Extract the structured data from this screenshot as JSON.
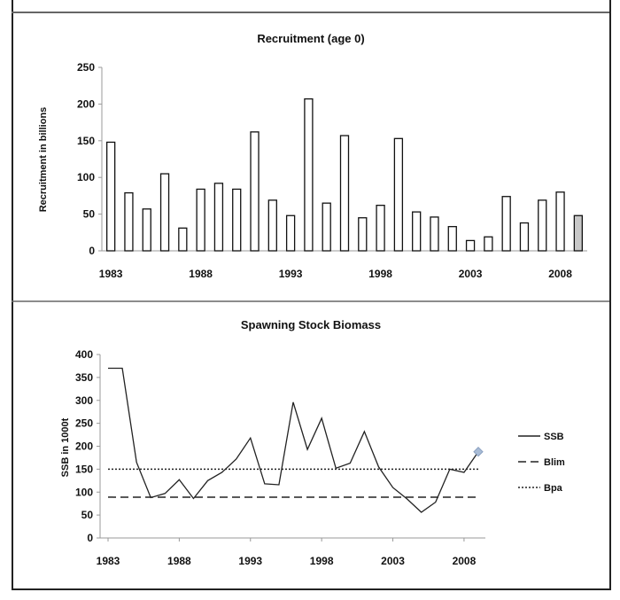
{
  "chart_data": [
    {
      "type": "bar",
      "title": "Recruitment (age 0)",
      "xlabel": "",
      "ylabel": "Recruitment in billions",
      "ylim": [
        0,
        250
      ],
      "yticks": [
        0,
        50,
        100,
        150,
        200,
        250
      ],
      "xtick_labels": [
        "1983",
        "1988",
        "1993",
        "1998",
        "2003",
        "2008"
      ],
      "categories": [
        1983,
        1984,
        1985,
        1986,
        1987,
        1988,
        1989,
        1990,
        1991,
        1992,
        1993,
        1994,
        1995,
        1996,
        1997,
        1998,
        1999,
        2000,
        2001,
        2002,
        2003,
        2004,
        2005,
        2006,
        2007,
        2008,
        2009
      ],
      "values": [
        148,
        79,
        57,
        105,
        31,
        84,
        92,
        84,
        162,
        69,
        48,
        207,
        65,
        157,
        45,
        62,
        153,
        53,
        46,
        33,
        14,
        19,
        74,
        38,
        69,
        80,
        48
      ],
      "bar_color": "#ffffff",
      "last_bar_color": "#c8c8c8"
    },
    {
      "type": "line",
      "title": "Spawning Stock Biomass",
      "xlabel": "",
      "ylabel": "SSB in 1000t",
      "ylim": [
        0,
        400
      ],
      "yticks": [
        0,
        50,
        100,
        150,
        200,
        250,
        300,
        350,
        400
      ],
      "xtick_labels": [
        "1983",
        "1988",
        "1993",
        "1998",
        "2003",
        "2008"
      ],
      "x": [
        1983,
        1984,
        1985,
        1986,
        1987,
        1988,
        1989,
        1990,
        1991,
        1992,
        1993,
        1994,
        1995,
        1996,
        1997,
        1998,
        1999,
        2000,
        2001,
        2002,
        2003,
        2004,
        2005,
        2006,
        2007,
        2008,
        2009
      ],
      "series": [
        {
          "name": "SSB",
          "values": [
            370,
            370,
            165,
            88,
            97,
            127,
            86,
            125,
            143,
            172,
            218,
            118,
            116,
            296,
            193,
            261,
            152,
            163,
            232,
            155,
            110,
            85,
            56,
            78,
            150,
            143,
            188
          ]
        },
        {
          "name": "Blim",
          "value": 89
        },
        {
          "name": "Bpa",
          "value": 150
        }
      ],
      "legend": "right",
      "last_point_color": "#a9bcd6"
    }
  ]
}
